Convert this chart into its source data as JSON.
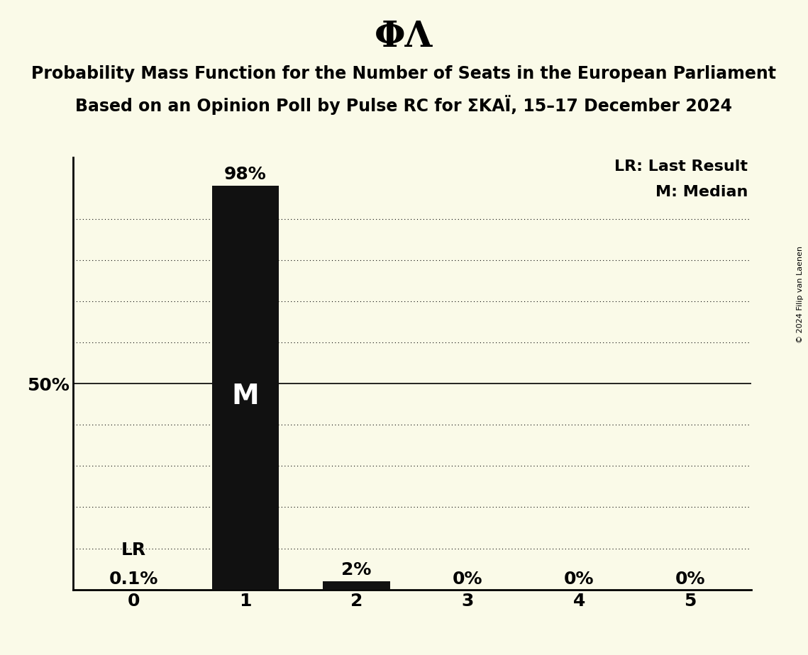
{
  "title": "ΦΛ",
  "subtitle_line1": "Probability Mass Function for the Number of Seats in the European Parliament",
  "subtitle_line2": "Based on an Opinion Poll by Pulse RC for ΣΚΑΪ, 15–17 December 2024",
  "copyright": "© 2024 Filip van Laenen",
  "categories": [
    0,
    1,
    2,
    3,
    4,
    5
  ],
  "values": [
    0.001,
    0.98,
    0.02,
    0.0,
    0.0,
    0.0
  ],
  "bar_color": "#111111",
  "background_color": "#fafae8",
  "bar_labels": [
    "0.1%",
    "98%",
    "2%",
    "0%",
    "0%",
    "0%"
  ],
  "median_bar": 1,
  "lr_bar": 0,
  "legend_lr": "LR: Last Result",
  "legend_m": "M: Median",
  "ytick_label": "50%",
  "ytick_value": 0.5,
  "ymax": 1.05,
  "title_fontsize": 36,
  "subtitle_fontsize": 17,
  "label_fontsize": 18,
  "tick_fontsize": 18,
  "legend_fontsize": 16,
  "ylabel_fontsize": 18,
  "grid_levels": [
    0.1,
    0.2,
    0.3,
    0.4,
    0.5,
    0.6,
    0.7,
    0.8,
    0.9
  ],
  "bar_width": 0.6
}
